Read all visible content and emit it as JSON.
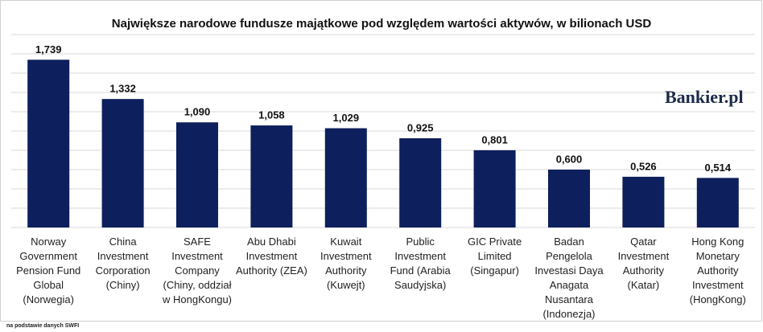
{
  "chart_data": {
    "type": "bar",
    "title": "Największe narodowe fundusze majątkowe pod względem wartości aktywów, w bilionach USD",
    "categories": [
      "Norway Government Pension Fund Global (Norwegia)",
      "China Investment Corporation (Chiny)",
      "SAFE Investment Company (Chiny, oddział w HongKongu)",
      "Abu Dhabi Investment Authority (ZEA)",
      "Kuwait Investment Authority (Kuwejt)",
      "Public Investment Fund (Arabia Saudyjska)",
      "GIC Private Limited (Singapur)",
      "Badan Pengelola Investasi Daya Anagata Nusantara (Indonezja)",
      "Qatar Investment Authority (Katar)",
      "Hong Kong Monetary Authority Investment (HongKong)"
    ],
    "values": [
      1.739,
      1.332,
      1.09,
      1.058,
      1.029,
      0.925,
      0.801,
      0.6,
      0.526,
      0.514
    ],
    "value_labels": [
      "1,739",
      "1,332",
      "1,090",
      "1,058",
      "1,029",
      "0,925",
      "0,801",
      "0,600",
      "0,526",
      "0,514"
    ],
    "color": "#0d1f5c",
    "ylim": [
      0,
      2
    ],
    "yticks": [
      0,
      0.2,
      0.4,
      0.6,
      0.8,
      1,
      1.2,
      1.4,
      1.6,
      1.8,
      2
    ],
    "grid": true
  },
  "logo": "Bankier.pl",
  "source_note": "na podstawie danych SWFI"
}
